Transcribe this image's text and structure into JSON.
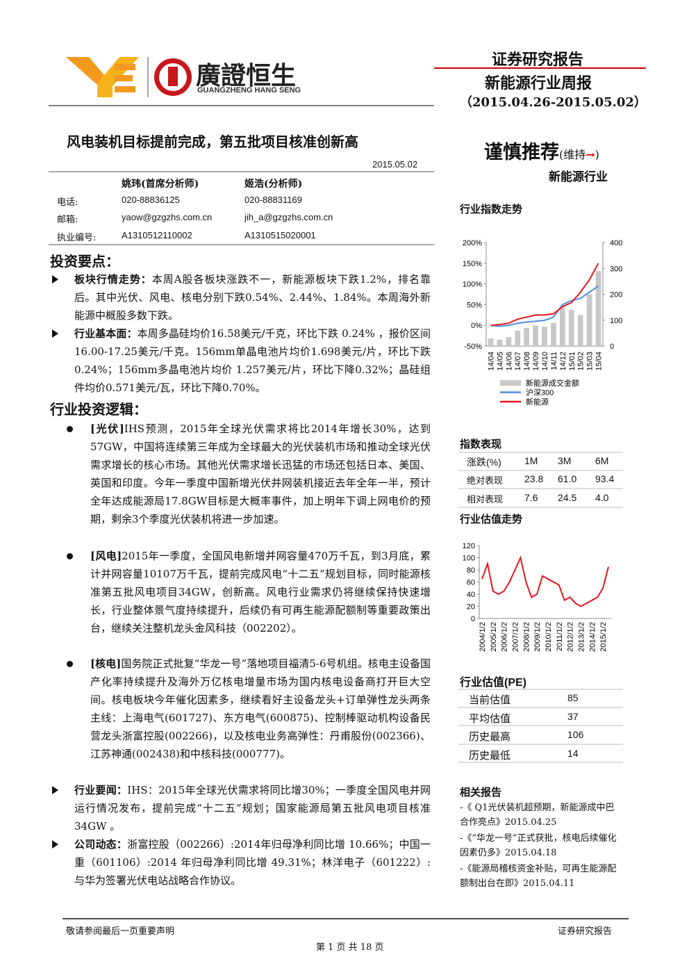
{
  "header": {
    "logo_text": "廣證恒生",
    "logo_subtext": "GUANGZHENG HANG SENG",
    "report_type": "证券研究报告",
    "report_name": "新能源行业周报",
    "period": "（2015.04.26-2015.05.02）"
  },
  "title": "风电装机目标提前完成，第五批项目核准创新高",
  "date": "2015.05.02",
  "analysts": {
    "names": [
      "姚玮(首席分析师)",
      "姬浩(分析师)"
    ],
    "rows": [
      [
        "电话:",
        "020-88836125",
        "020-88831169"
      ],
      [
        "邮箱:",
        "yaow@gzgzhs.com.cn",
        "jih_a@gzgzhs.com.cn"
      ],
      [
        "执业编号:",
        "A1310512110002",
        "A1310515020001"
      ]
    ]
  },
  "key_points": {
    "heading": "投资要点：",
    "items": [
      {
        "label": "板块行情走势：",
        "text": "本周A股各板块涨跌不一，新能源板块下跌1.2%，排名靠后。其中光伏、风电、核电分别下跌0.54%、2.44%、1.84%。本周海外新能源中概股多数下跌。"
      },
      {
        "label": "行业基本面：",
        "text": "本周多晶硅均价16.58美元/千克，环比下跌 0.24% ，报价区间16.00-17.25美元/千克。156mm单晶电池片均价1.698美元/片，环比下跌 0.24%；156mm多晶电池片均价 1.257美元/片，环比下降0.32%；晶硅组件均价0.571美元/瓦，环比下降0.70%。"
      }
    ]
  },
  "logic": {
    "heading": "行业投资逻辑：",
    "items": [
      {
        "label": "[光伏]",
        "text": "IHS预测，2015年全球光伏需求将比2014年增长30%，达到57GW，中国将连续第三年成为全球最大的光伏装机市场和推动全球光伏需求增长的核心市场。其他光伏需求增长迅猛的市场还包括日本、美国、英国和印度。今年一季度中国新增光伏并网装机接近去年全年一半，预计全年达成能源局17.8GW目标是大概率事件，加上明年下调上网电价的预期，剩余3个季度光伏装机将进一步加速。"
      },
      {
        "label": "[风电]",
        "text": "2015年一季度，全国风电新增并网容量470万千瓦，到3月底，累计并网容量10107万千瓦，提前完成风电“十二五”规划目标，同时能源核准第五批风电项目34GW，创新高。风电行业需求仍将继续保持快速增长，行业整体景气度持续提升，后续仍有可再生能源配额制等重要政策出台，继续关注整机龙头金风科技（002202）。"
      },
      {
        "label": "[核电]",
        "text": "国务院正式批复“华龙一号”落地项目福清5-6号机组。核电主设备国产化率持续提升及海外万亿核电增量市场为国内核电设备商打开巨大空间。核电板块今年催化因素多，继续看好主设备龙头+订单弹性龙头两条主线：上海电气(601727)、东方电气(600875)、控制棒驱动机构设备民营龙头浙富控股(002266)，以及核电业务高弹性：丹甫股份(002366)、江苏神通(002438)和中核科技(000777)。"
      }
    ]
  },
  "news": [
    {
      "label": "行业要闻：",
      "text": "IHS：2015年全球光伏需求将同比增30%；一季度全国风电并网运行情况发布，提前完成“十二五”规划；国家能源局第五批风电项目核准34GW 。"
    },
    {
      "label": "公司动态：",
      "text": "浙富控股（002266）:2014年归母净利同比增 10.66%；中国一重（601106）:2014 年归母净利同比增 49.31%；林洋电子（601222）:与华为签署光伏电站战略合作协议。"
    }
  ],
  "rating": {
    "main": "谨慎推荐",
    "status": "(维持",
    "arrow": "→",
    "close": ")"
  },
  "sector": "新能源行业",
  "chart_data": [
    {
      "type": "line",
      "title": "行业指数走势",
      "categories": [
        "14/04",
        "14/05",
        "14/06",
        "14/07",
        "14/08",
        "14/09",
        "14/10",
        "14/11",
        "14/12",
        "15/01",
        "15/02",
        "15/03",
        "15/04"
      ],
      "ylim": [
        -50,
        200
      ],
      "yticks": [
        {
          "value": -50,
          "label": "-50%"
        },
        {
          "value": 0,
          "label": "0%"
        },
        {
          "value": 50,
          "label": "50%"
        },
        {
          "value": 100,
          "label": "100%"
        },
        {
          "value": 150,
          "label": "150%"
        },
        {
          "value": 200,
          "label": "200%"
        }
      ],
      "y2lim": [
        0,
        400
      ],
      "y2ticks": [
        0,
        100,
        200,
        300,
        400
      ],
      "series": [
        {
          "name": "新能源成交金额",
          "type": "bar",
          "axis": "y2",
          "color": "#c8c8c8",
          "values": [
            30,
            25,
            35,
            60,
            70,
            80,
            75,
            90,
            150,
            140,
            120,
            200,
            290
          ]
        },
        {
          "name": "沪深300",
          "type": "line",
          "color": "#4a8fd8",
          "values": [
            0,
            -2,
            0,
            5,
            8,
            10,
            12,
            20,
            50,
            60,
            65,
            80,
            95
          ]
        },
        {
          "name": "新能源",
          "type": "line",
          "color": "#e8141b",
          "values": [
            0,
            2,
            5,
            15,
            20,
            25,
            25,
            28,
            45,
            55,
            80,
            110,
            150
          ]
        }
      ]
    },
    {
      "type": "line",
      "title": "行业估值走势",
      "categories": [
        "2004/1/2",
        null,
        "2005/1/2",
        null,
        "2006/1/2",
        null,
        "2007/1/2",
        null,
        "2008/1/2",
        null,
        "2009/1/2",
        null,
        "2010/1/2",
        null,
        "2011/1/2",
        null,
        "2012/1/2",
        null,
        "2013/1/2",
        null,
        "2014/1/2",
        null,
        "2015/1/2",
        null
      ],
      "ylim": [
        0,
        120
      ],
      "yticks": [
        0,
        20,
        40,
        60,
        80,
        100,
        120
      ],
      "series": [
        {
          "name": "PE",
          "color": "#e8141b",
          "values": [
            65,
            90,
            45,
            40,
            45,
            60,
            80,
            100,
            60,
            35,
            40,
            70,
            65,
            60,
            55,
            30,
            35,
            25,
            20,
            25,
            30,
            35,
            50,
            85
          ]
        }
      ]
    }
  ],
  "index_perf": {
    "title": "指数表现",
    "header": [
      "涨跌(%)",
      "1M",
      "3M",
      "6M"
    ],
    "rows": [
      [
        "绝对表现",
        "23.8",
        "61.0",
        "93.4"
      ],
      [
        "相对表现",
        "7.6",
        "24.5",
        "4.0"
      ]
    ]
  },
  "pe_table": {
    "title": "行业估值(PE)",
    "rows": [
      [
        "当前估值",
        85
      ],
      [
        "平均估值",
        37
      ],
      [
        "历史最高",
        106
      ],
      [
        "历史最低",
        14
      ]
    ]
  },
  "related": {
    "title": "相关报告",
    "items": [
      "-《 Q1光伏装机超预期，新能源成中巴合作亮点》2015.04.25",
      "-《“华龙一号”正式获批，核电后续催化因素仍多》2015.04.18",
      "-《能源局稽核资金补贴，可再生能源配额制出台在即》2015.04.11"
    ]
  },
  "footer": {
    "disclaimer": "敬请参阅最后一页重要声明",
    "label": "证券研究报告",
    "page": "第 1 页 共 18 页"
  }
}
